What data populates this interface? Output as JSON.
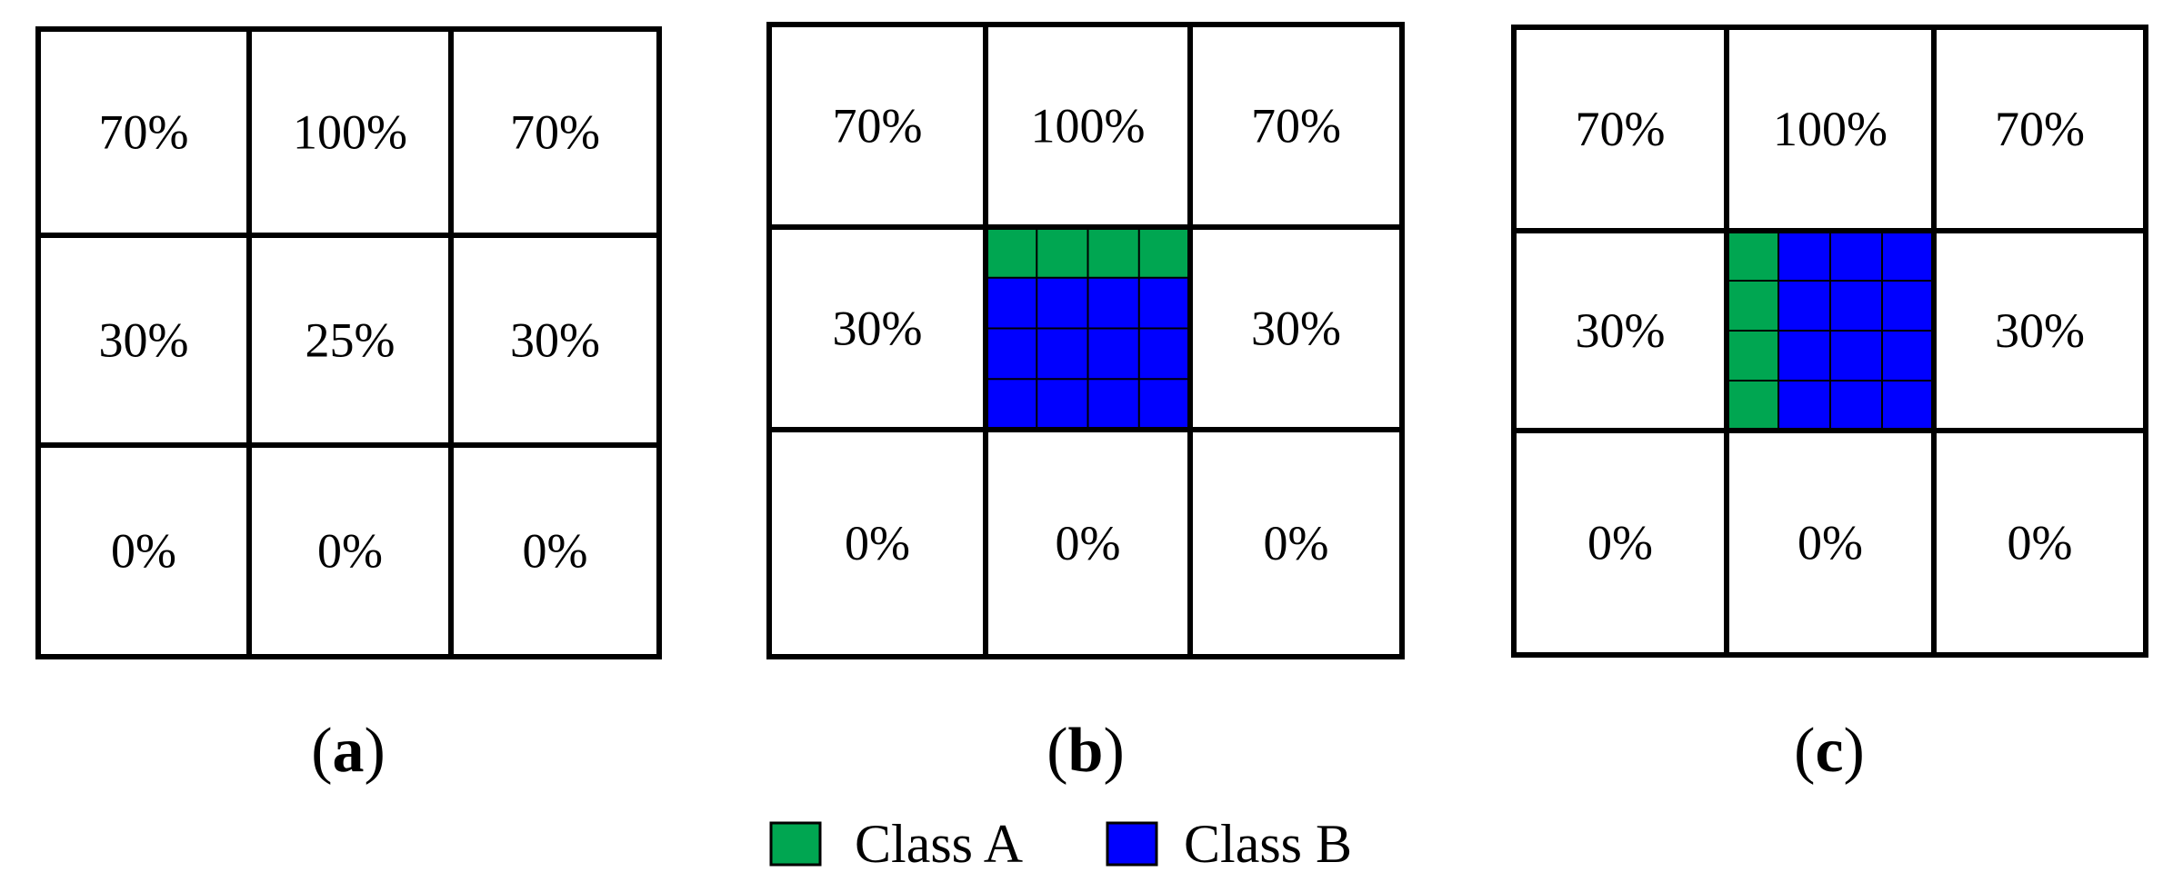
{
  "colors": {
    "class_a": "#00a651",
    "class_b": "#0000ff",
    "line": "#000000",
    "background": "#ffffff"
  },
  "panels": [
    {
      "label": "a",
      "cells": [
        "70%",
        "100%",
        "70%",
        "30%",
        "25%",
        "30%",
        "0%",
        "0%",
        "0%"
      ],
      "center_subgrid": null
    },
    {
      "label": "b",
      "cells": [
        "70%",
        "100%",
        "70%",
        "30%",
        "",
        "30%",
        "0%",
        "0%",
        "0%"
      ],
      "center_subgrid": {
        "rows": 4,
        "cols": 4,
        "pattern": [
          [
            "A",
            "A",
            "A",
            "A"
          ],
          [
            "B",
            "B",
            "B",
            "B"
          ],
          [
            "B",
            "B",
            "B",
            "B"
          ],
          [
            "B",
            "B",
            "B",
            "B"
          ]
        ]
      }
    },
    {
      "label": "c",
      "cells": [
        "70%",
        "100%",
        "70%",
        "30%",
        "",
        "30%",
        "0%",
        "0%",
        "0%"
      ],
      "center_subgrid": {
        "rows": 4,
        "cols": 4,
        "pattern": [
          [
            "A",
            "B",
            "B",
            "B"
          ],
          [
            "A",
            "B",
            "B",
            "B"
          ],
          [
            "A",
            "B",
            "B",
            "B"
          ],
          [
            "A",
            "B",
            "B",
            "B"
          ]
        ]
      }
    }
  ],
  "legend": [
    {
      "key": "A",
      "label": "Class A"
    },
    {
      "key": "B",
      "label": "Class B"
    }
  ]
}
